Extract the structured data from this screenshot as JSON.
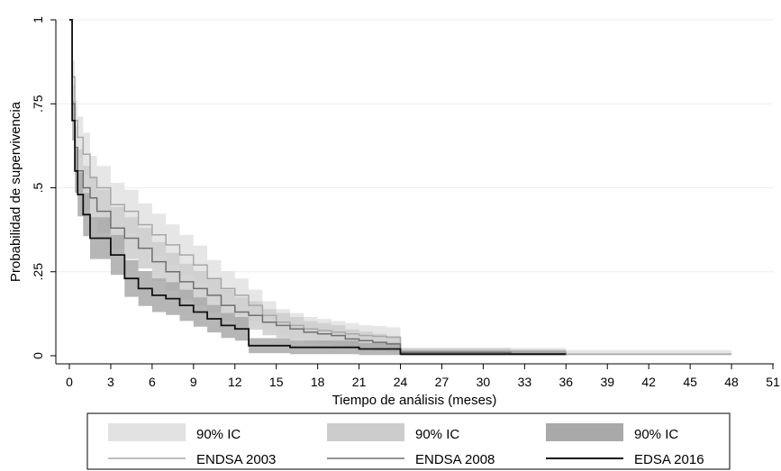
{
  "chart_data": {
    "type": "line",
    "title": "",
    "xlabel": "Tiempo de análisis (meses)",
    "ylabel": "Probabilidad de supervivencia",
    "xlim": [
      0,
      51
    ],
    "ylim": [
      0,
      1
    ],
    "x_ticks": [
      0,
      3,
      6,
      9,
      12,
      15,
      18,
      21,
      24,
      27,
      30,
      33,
      36,
      39,
      42,
      45,
      48,
      51
    ],
    "y_ticks": [
      0,
      0.25,
      0.5,
      0.75,
      1
    ],
    "y_tick_labels": [
      "0",
      ".25",
      ".5",
      ".75",
      "1"
    ],
    "grid": "horizontal",
    "legend_position": "bottom",
    "series": [
      {
        "name": "ENDSA 2003",
        "color": "#a8a8a8",
        "ci_label": "90% IC",
        "ci_color": "#e2e2e2",
        "x": [
          0,
          0.2,
          0.4,
          0.6,
          1,
          1.5,
          2,
          3,
          4,
          5,
          6,
          7,
          8,
          9,
          10,
          11,
          12,
          13,
          14,
          15,
          16,
          17,
          18,
          19,
          20,
          21,
          22,
          23,
          24,
          36,
          48
        ],
        "y": [
          1,
          0.83,
          0.7,
          0.65,
          0.6,
          0.53,
          0.5,
          0.45,
          0.43,
          0.39,
          0.36,
          0.33,
          0.3,
          0.27,
          0.23,
          0.2,
          0.18,
          0.15,
          0.12,
          0.1,
          0.09,
          0.08,
          0.075,
          0.07,
          0.065,
          0.06,
          0.058,
          0.055,
          0.01,
          0.005,
          0.005
        ]
      },
      {
        "name": "ENDSA 2008",
        "color": "#707070",
        "ci_label": "90% IC",
        "ci_color": "#cccccc",
        "x": [
          0,
          0.2,
          0.4,
          0.6,
          1,
          1.5,
          2,
          3,
          4,
          5,
          6,
          7,
          8,
          9,
          10,
          11,
          12,
          13,
          14,
          15,
          16,
          17,
          18,
          19,
          20,
          21,
          22,
          23,
          24,
          32,
          36
        ],
        "y": [
          1,
          0.75,
          0.62,
          0.55,
          0.5,
          0.47,
          0.43,
          0.38,
          0.35,
          0.32,
          0.28,
          0.25,
          0.22,
          0.2,
          0.18,
          0.15,
          0.13,
          0.12,
          0.1,
          0.09,
          0.08,
          0.07,
          0.065,
          0.06,
          0.05,
          0.045,
          0.04,
          0.035,
          0.01,
          0.005,
          0.005
        ]
      },
      {
        "name": "EDSA 2016",
        "color": "#111111",
        "ci_label": "90% IC",
        "ci_color": "#a9a9a9",
        "x": [
          0,
          0.2,
          0.4,
          0.6,
          1,
          1.5,
          3,
          4,
          5,
          6,
          7,
          8,
          9,
          10,
          11,
          12,
          13,
          14,
          15,
          16,
          17,
          18,
          19,
          20,
          21,
          22,
          23,
          24,
          36
        ],
        "y": [
          1,
          0.7,
          0.55,
          0.48,
          0.42,
          0.35,
          0.3,
          0.23,
          0.2,
          0.18,
          0.17,
          0.15,
          0.13,
          0.11,
          0.09,
          0.08,
          0.03,
          0.03,
          0.03,
          0.025,
          0.025,
          0.025,
          0.025,
          0.025,
          0.02,
          0.02,
          0.02,
          0.005,
          0.005
        ]
      }
    ]
  }
}
